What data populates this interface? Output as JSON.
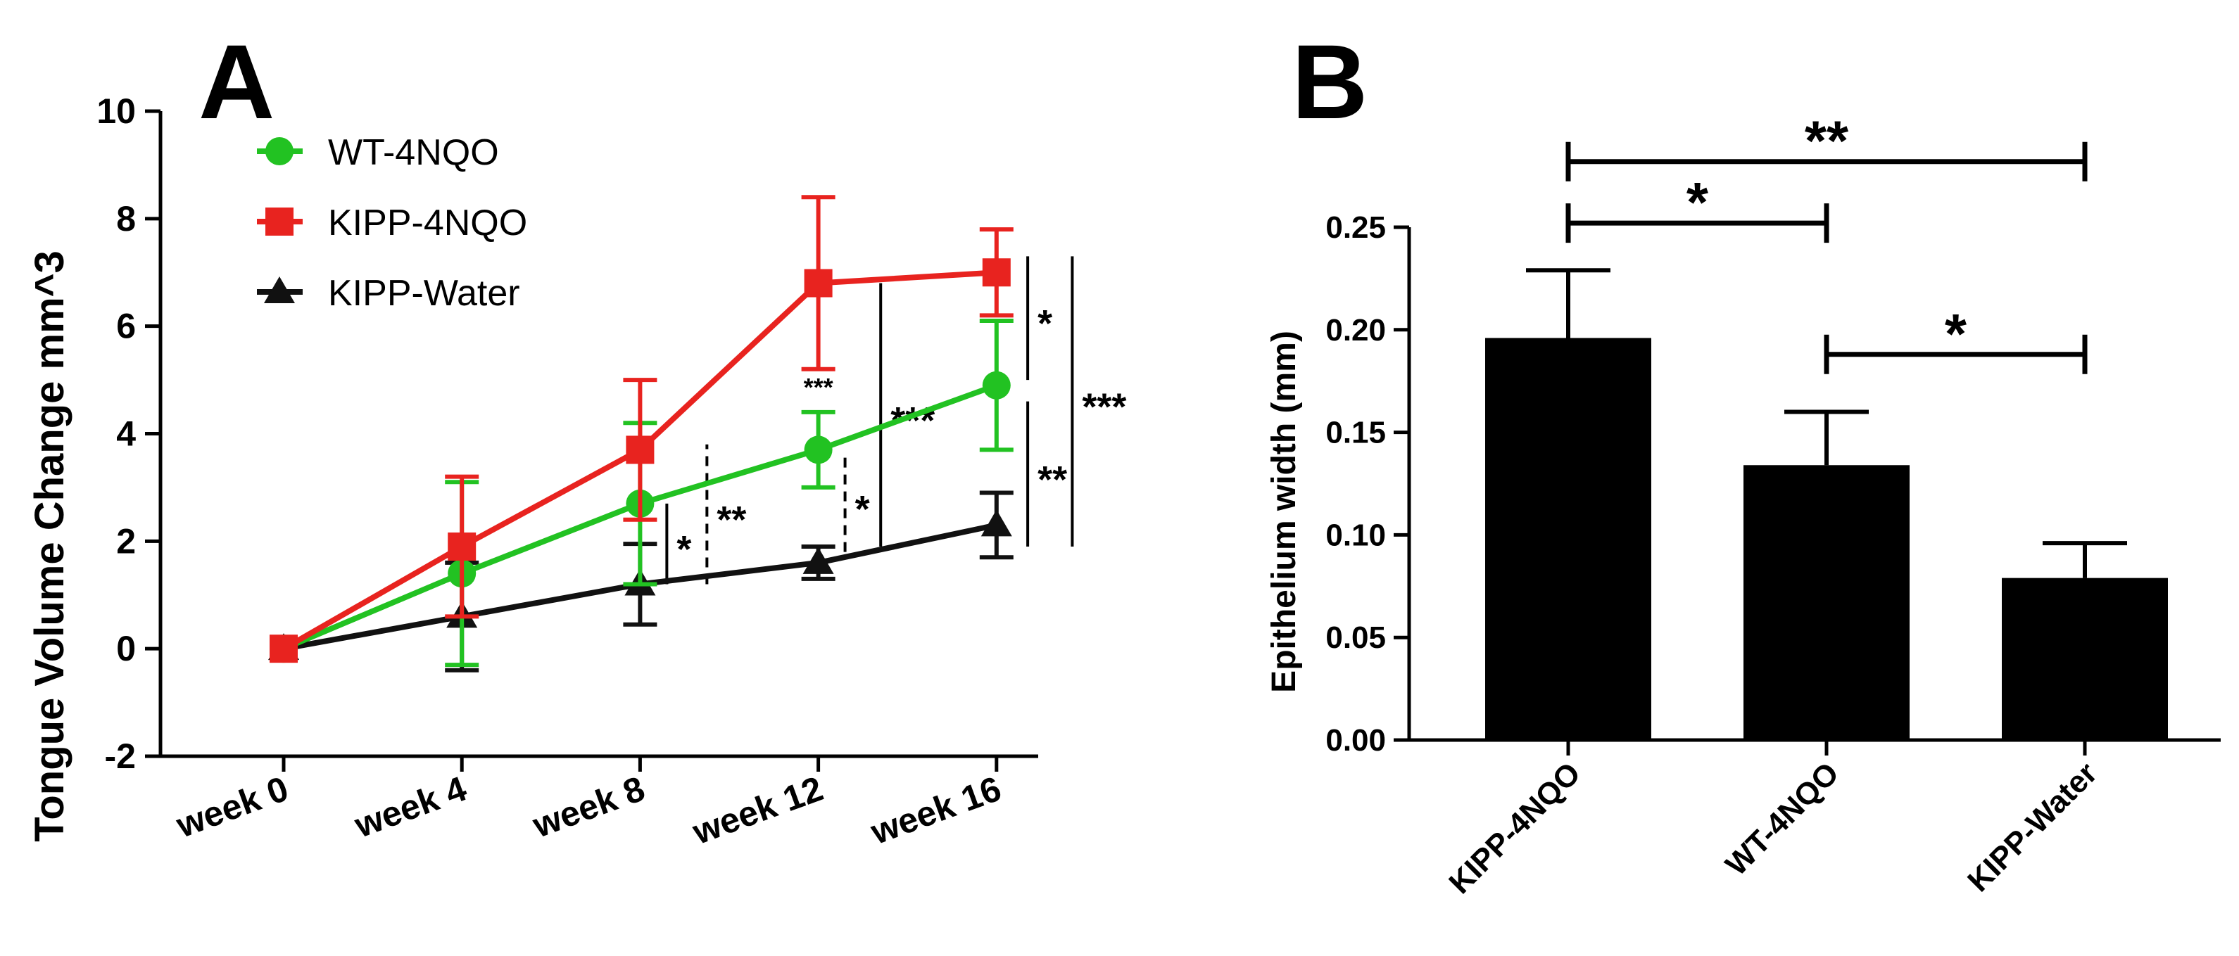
{
  "chart_data": [
    {
      "panel": "A",
      "type": "line",
      "ylabel": "Tongue Volume Change mm^3",
      "xlabel": "",
      "ylim": [
        -2,
        10
      ],
      "yticks": [
        "-2",
        "0",
        "2",
        "4",
        "6",
        "8",
        "10"
      ],
      "categories": [
        "week 0",
        "week 4",
        "week 8",
        "week 12",
        "week 16"
      ],
      "legend_position": "top-left",
      "series": [
        {
          "name": "WT-4NQO",
          "color": "#22c222",
          "marker": "circle",
          "values": [
            0,
            1.4,
            2.7,
            3.7,
            4.9
          ],
          "errors": [
            0.1,
            1.7,
            1.5,
            0.7,
            1.2
          ]
        },
        {
          "name": "KIPP-4NQO",
          "color": "#e8231f",
          "marker": "square",
          "values": [
            0,
            1.9,
            3.7,
            6.8,
            7.0
          ],
          "errors": [
            0.1,
            1.3,
            1.3,
            1.6,
            0.8
          ]
        },
        {
          "name": "KIPP-Water",
          "color": "#111111",
          "marker": "triangle",
          "values": [
            0,
            0.6,
            1.2,
            1.6,
            2.3
          ],
          "errors": [
            0.1,
            1.0,
            0.75,
            0.3,
            0.6
          ]
        }
      ],
      "annotations": [
        {
          "label": "*",
          "x": 8.6,
          "y_range": [
            1.2,
            2.7
          ],
          "style": "solid"
        },
        {
          "label": "**",
          "x": 9.5,
          "y_range": [
            1.2,
            3.8
          ],
          "style": "dashed"
        },
        {
          "label": "***",
          "x": 12,
          "y": 4.7,
          "style": "text"
        },
        {
          "label": "*",
          "x": 12.6,
          "y_range": [
            1.8,
            3.6
          ],
          "style": "dashed"
        },
        {
          "label": "***",
          "x": 13.4,
          "y_range": [
            1.9,
            6.8
          ],
          "style": "solid"
        },
        {
          "label": "*",
          "x": 16.7,
          "y_range": [
            5.0,
            7.3
          ],
          "style": "solid"
        },
        {
          "label": "**",
          "x": 16.7,
          "y_range": [
            1.9,
            4.6
          ],
          "style": "solid"
        },
        {
          "label": "***",
          "x": 17.7,
          "y_range": [
            1.9,
            7.3
          ],
          "style": "solid"
        }
      ]
    },
    {
      "panel": "B",
      "type": "bar",
      "ylabel": "Epithelium width (mm)",
      "xlabel": "",
      "ylim": [
        0,
        0.25
      ],
      "yticks": [
        "0.00",
        "0.05",
        "0.10",
        "0.15",
        "0.20",
        "0.25"
      ],
      "categories": [
        "KIPP-4NQO",
        "WT-4NQO",
        "KIPP-Water"
      ],
      "values": [
        0.196,
        0.134,
        0.079
      ],
      "errors": [
        0.033,
        0.026,
        0.017
      ],
      "bar_color": "#000000",
      "significance": [
        {
          "label": "**",
          "from": "KIPP-4NQO",
          "to": "KIPP-Water",
          "level": 0.282
        },
        {
          "label": "*",
          "from": "KIPP-4NQO",
          "to": "WT-4NQO",
          "level": 0.252
        },
        {
          "label": "*",
          "from": "WT-4NQO",
          "to": "KIPP-Water",
          "level": 0.188
        }
      ]
    }
  ]
}
